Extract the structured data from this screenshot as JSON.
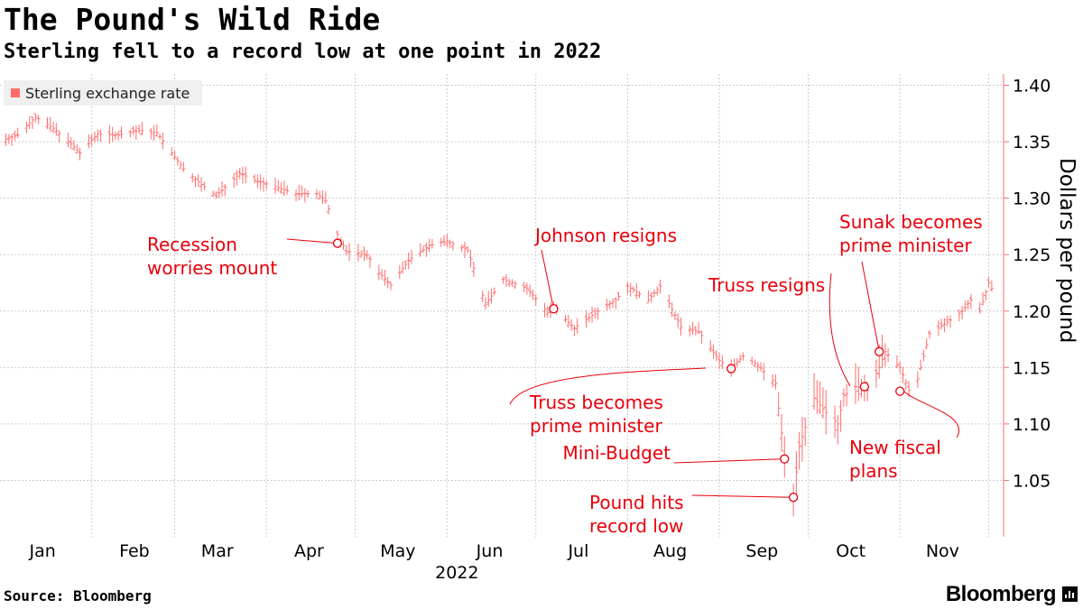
{
  "title": "The Pound's Wild Ride",
  "subtitle": "Sterling fell to a record low at one point in 2022",
  "legend_label": "Sterling exchange rate",
  "source": "Source: Bloomberg",
  "brand": "Bloomberg",
  "colors": {
    "series": "#ff6b6b",
    "annotation": "#e8000b",
    "grid": "#cccccc",
    "axis": "#ff6b6b"
  },
  "chart_data": {
    "type": "line",
    "title": "The Pound's Wild Ride",
    "subtitle": "Sterling fell to a record low at one point in 2022",
    "ylabel": "Dollars per pound",
    "xlabel": "2022",
    "ylim": [
      1.0,
      1.41
    ],
    "y_ticks": [
      1.05,
      1.1,
      1.15,
      1.2,
      1.25,
      1.3,
      1.35,
      1.4
    ],
    "y_tick_labels": [
      "1.05",
      "1.10",
      "1.15",
      "1.20",
      "1.25",
      "1.30",
      "1.35",
      "1.40"
    ],
    "x_tick_labels": [
      "Jan",
      "Feb",
      "Mar",
      "Apr",
      "May",
      "Jun",
      "Jul",
      "Aug",
      "Sep",
      "Oct",
      "Nov"
    ],
    "grid": true,
    "legend": "top-left",
    "series": [
      {
        "name": "Sterling exchange rate",
        "points": [
          [
            "2022-01-01",
            1.35
          ],
          [
            "2022-01-07",
            1.356
          ],
          [
            "2022-01-13",
            1.372
          ],
          [
            "2022-01-19",
            1.362
          ],
          [
            "2022-01-25",
            1.348
          ],
          [
            "2022-01-28",
            1.34
          ],
          [
            "2022-02-03",
            1.357
          ],
          [
            "2022-02-10",
            1.356
          ],
          [
            "2022-02-17",
            1.36
          ],
          [
            "2022-02-23",
            1.358
          ],
          [
            "2022-02-28",
            1.34
          ],
          [
            "2022-03-04",
            1.326
          ],
          [
            "2022-03-10",
            1.312
          ],
          [
            "2022-03-15",
            1.302
          ],
          [
            "2022-03-23",
            1.322
          ],
          [
            "2022-03-28",
            1.316
          ],
          [
            "2022-04-04",
            1.31
          ],
          [
            "2022-04-11",
            1.304
          ],
          [
            "2022-04-18",
            1.304
          ],
          [
            "2022-04-21",
            1.298
          ],
          [
            "2022-04-25",
            1.268
          ],
          [
            "2022-04-28",
            1.253
          ],
          [
            "2022-05-05",
            1.25
          ],
          [
            "2022-05-09",
            1.234
          ],
          [
            "2022-05-13",
            1.223
          ],
          [
            "2022-05-19",
            1.245
          ],
          [
            "2022-05-26",
            1.258
          ],
          [
            "2022-06-01",
            1.262
          ],
          [
            "2022-06-08",
            1.254
          ],
          [
            "2022-06-14",
            1.206
          ],
          [
            "2022-06-20",
            1.228
          ],
          [
            "2022-06-28",
            1.22
          ],
          [
            "2022-07-05",
            1.199
          ],
          [
            "2022-07-07",
            1.202
          ],
          [
            "2022-07-14",
            1.185
          ],
          [
            "2022-07-21",
            1.198
          ],
          [
            "2022-07-28",
            1.21
          ],
          [
            "2022-08-01",
            1.222
          ],
          [
            "2022-08-08",
            1.21
          ],
          [
            "2022-08-12",
            1.222
          ],
          [
            "2022-08-19",
            1.186
          ],
          [
            "2022-08-25",
            1.182
          ],
          [
            "2022-09-01",
            1.156
          ],
          [
            "2022-09-05",
            1.15
          ],
          [
            "2022-09-09",
            1.16
          ],
          [
            "2022-09-14",
            1.152
          ],
          [
            "2022-09-20",
            1.136
          ],
          [
            "2022-09-23",
            1.07
          ],
          [
            "2022-09-26",
            1.035
          ],
          [
            "2022-09-28",
            1.08
          ],
          [
            "2022-10-03",
            1.123
          ],
          [
            "2022-10-07",
            1.11
          ],
          [
            "2022-10-11",
            1.1
          ],
          [
            "2022-10-13",
            1.125
          ],
          [
            "2022-10-17",
            1.133
          ],
          [
            "2022-10-21",
            1.13
          ],
          [
            "2022-10-25",
            1.15
          ],
          [
            "2022-10-27",
            1.164
          ],
          [
            "2022-11-01",
            1.15
          ],
          [
            "2022-11-04",
            1.13
          ],
          [
            "2022-11-07",
            1.14
          ],
          [
            "2022-11-11",
            1.18
          ],
          [
            "2022-11-17",
            1.19
          ],
          [
            "2022-11-22",
            1.2
          ],
          [
            "2022-11-25",
            1.21
          ],
          [
            "2022-11-28",
            1.2
          ],
          [
            "2022-12-01",
            1.225
          ],
          [
            "2022-12-02",
            1.22
          ]
        ]
      }
    ],
    "annotations": [
      {
        "text": [
          "Recession",
          "worries mount"
        ],
        "date": "2022-04-25",
        "value": 1.26
      },
      {
        "text": [
          "Johnson resigns"
        ],
        "date": "2022-07-07",
        "value": 1.202
      },
      {
        "text": [
          "Truss becomes",
          "prime minister"
        ],
        "date": "2022-09-05",
        "value": 1.149
      },
      {
        "text": [
          "Mini-Budget"
        ],
        "date": "2022-09-23",
        "value": 1.069
      },
      {
        "text": [
          "Pound hits",
          "record low"
        ],
        "date": "2022-09-26",
        "value": 1.035
      },
      {
        "text": [
          "Truss resigns"
        ],
        "date": "2022-10-20",
        "value": 1.133
      },
      {
        "text": [
          "Sunak becomes",
          "prime minister"
        ],
        "date": "2022-10-25",
        "value": 1.164
      },
      {
        "text": [
          "New fiscal",
          "plans"
        ],
        "date": "2022-11-01",
        "value": 1.129
      }
    ]
  }
}
